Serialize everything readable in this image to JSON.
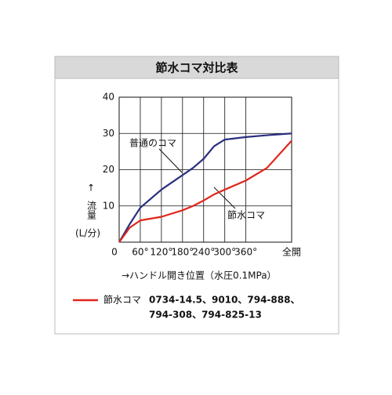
{
  "chart_data": {
    "type": "line",
    "title": "節水コマ対比表",
    "x_label": "→ハンドル開き位置（水圧0.1MPa）",
    "y_label": {
      "arrow": "↑",
      "name": "流量",
      "unit": "(L/分)"
    },
    "xlim": [
      0,
      490
    ],
    "ylim": [
      0,
      40
    ],
    "xticks": [
      0,
      {
        "value": 60,
        "label": "60°"
      },
      {
        "value": 120,
        "label": "120°"
      },
      {
        "value": 180,
        "label": "180°"
      },
      {
        "value": 240,
        "label": "240°"
      },
      {
        "value": 300,
        "label": "300°"
      },
      {
        "value": 360,
        "label": "360°"
      },
      {
        "value": 490,
        "label": "全開"
      }
    ],
    "yticks": [
      10,
      20,
      30,
      40
    ],
    "grid": true,
    "x": [
      0,
      30,
      60,
      120,
      180,
      210,
      240,
      270,
      300,
      360,
      420,
      490
    ],
    "series": [
      {
        "name": "普通のコマ",
        "color": "#2a2f7f",
        "values": [
          0,
          5,
          9.5,
          14.5,
          18.5,
          20.5,
          23,
          26.5,
          28.3,
          29,
          29.5,
          30
        ]
      },
      {
        "name": "節水コマ",
        "color": "#e0261b",
        "values": [
          0,
          4,
          6,
          7,
          8.8,
          10,
          11.5,
          13.2,
          14.5,
          17,
          20.5,
          28
        ]
      }
    ],
    "legend_models": [
      "0734-14.5、9010、794-888、",
      "794-308、794-825-13"
    ]
  }
}
